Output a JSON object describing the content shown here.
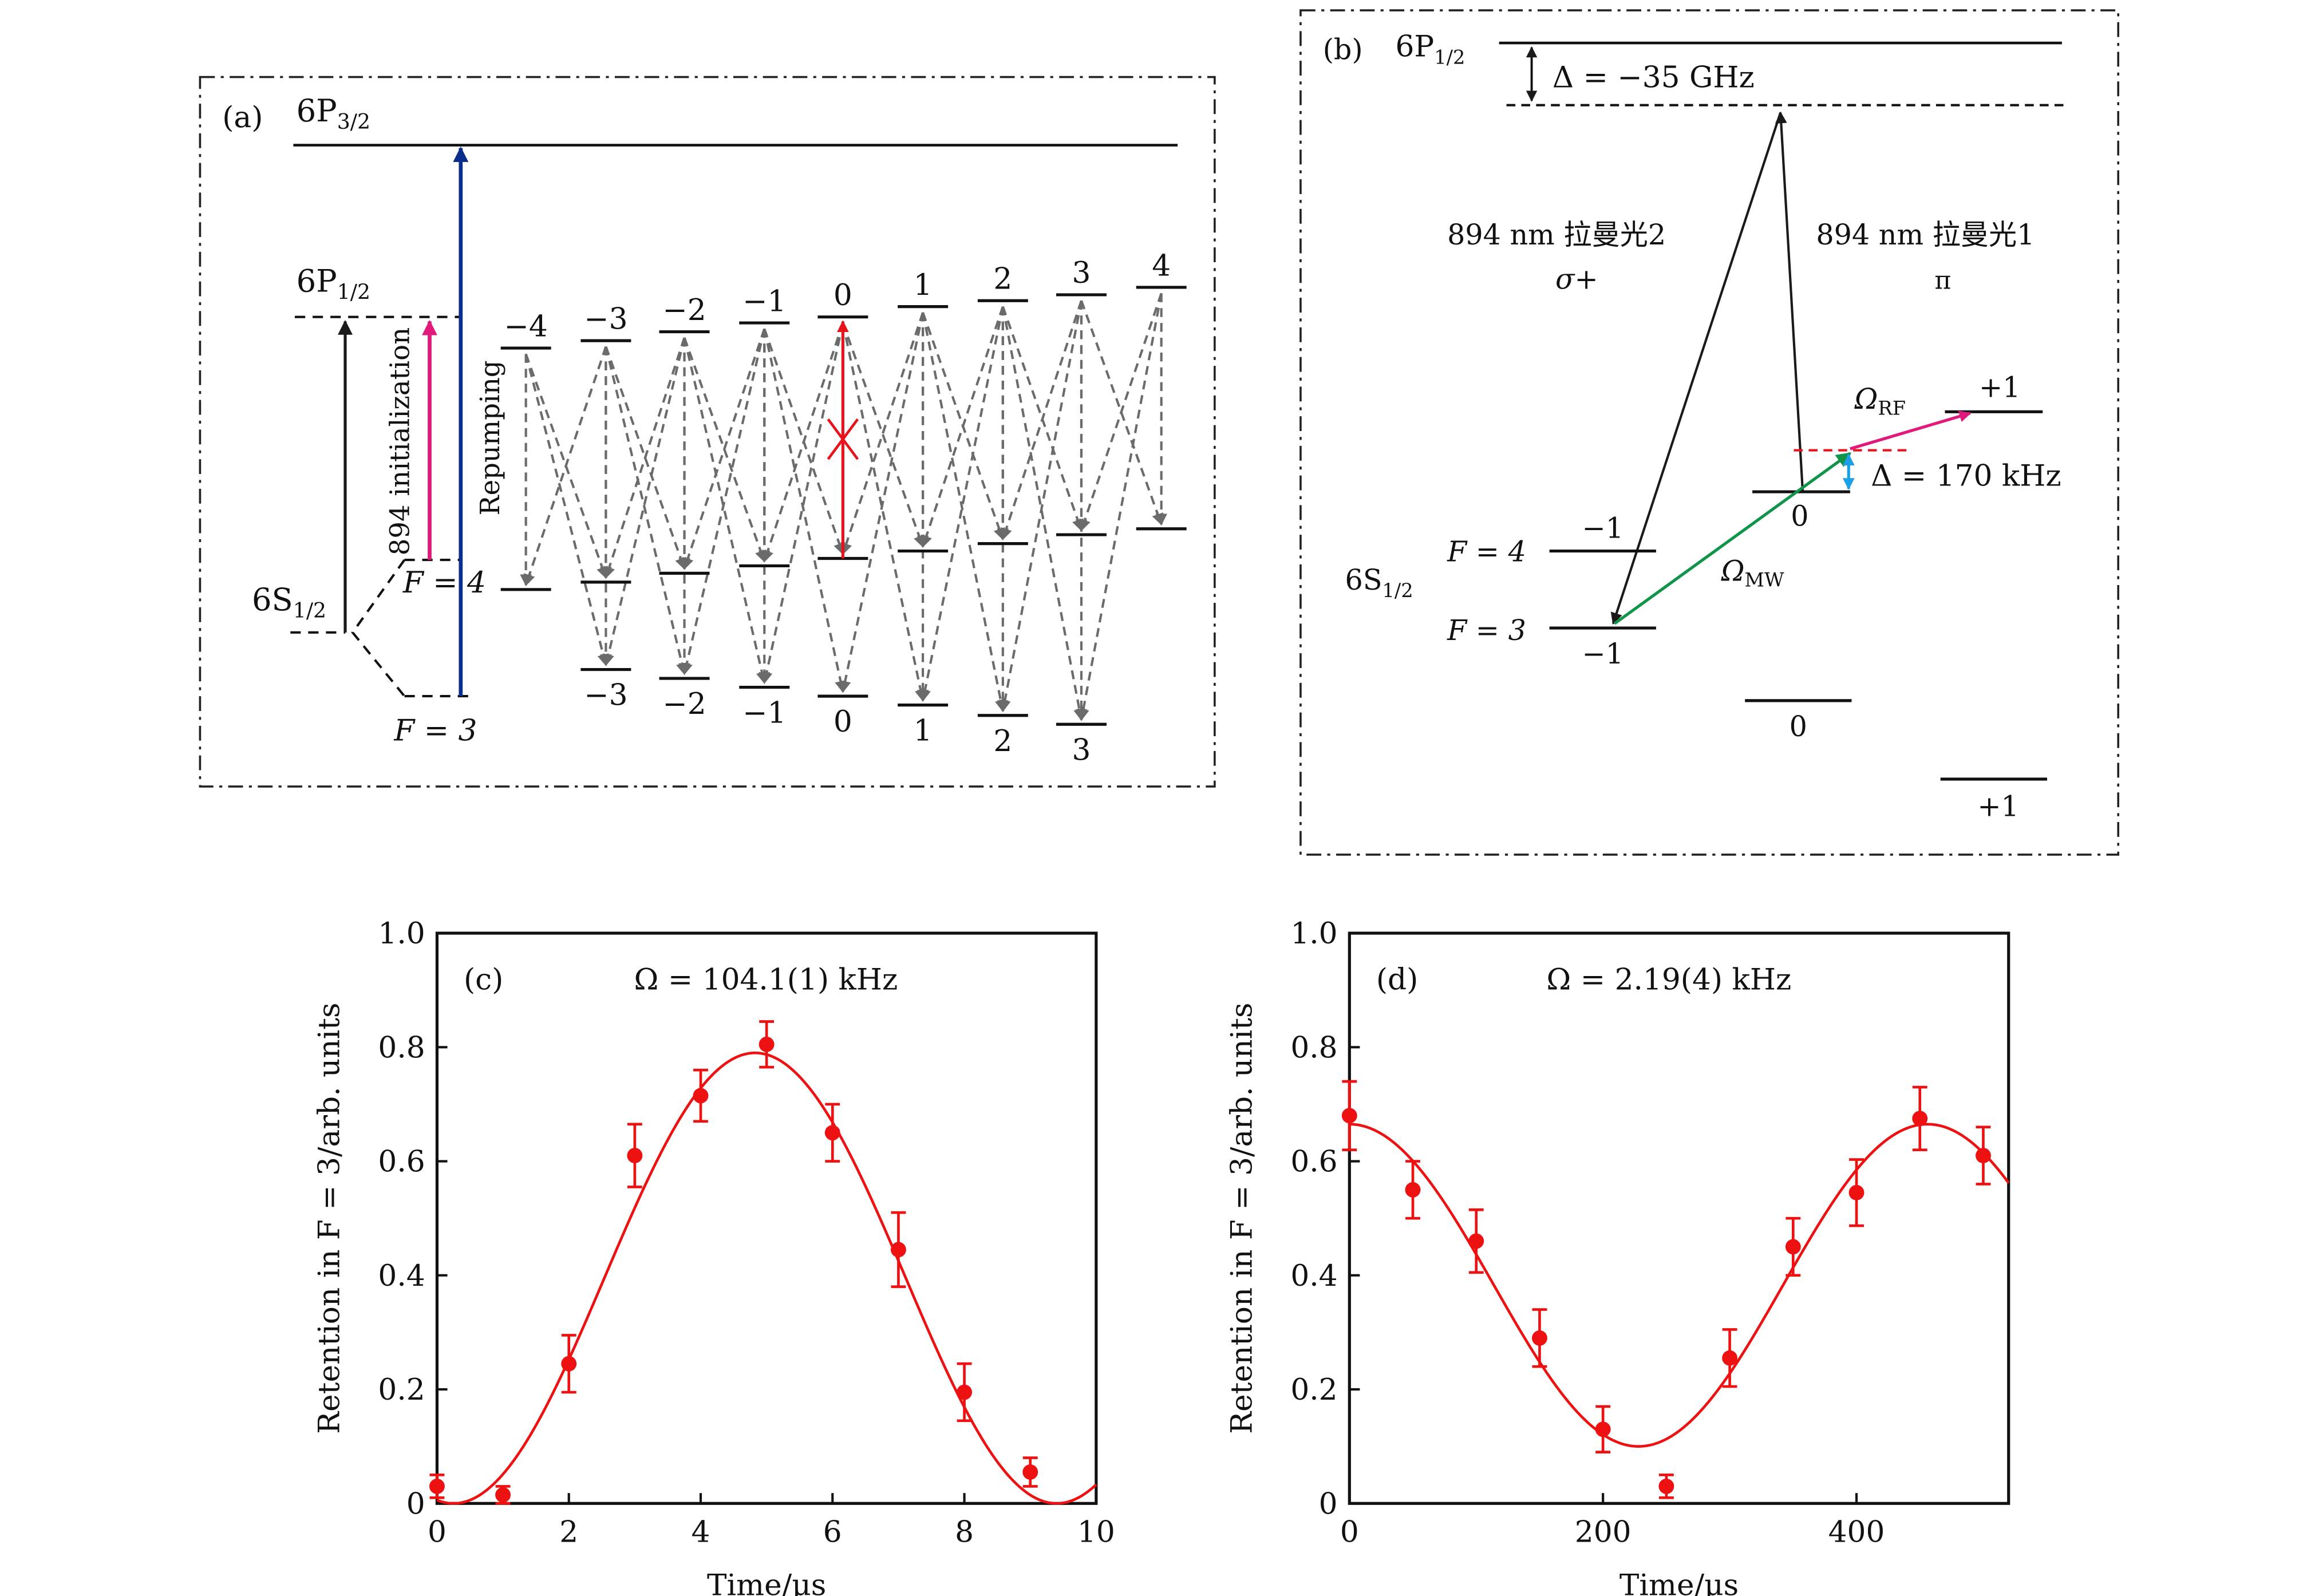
{
  "panel_a": {
    "label": "(a)",
    "p32": {
      "main": "6P",
      "sub": "3/2"
    },
    "p12": {
      "main": "6P",
      "sub": "1/2"
    },
    "s12": {
      "main": "6S",
      "sub": "1/2"
    },
    "f4": "F = 4",
    "f3": "F = 3",
    "init_label": "894 initialization",
    "repump_label": "Repumping",
    "upper_m": [
      "−4",
      "−3",
      "−2",
      "−1",
      "0",
      "1",
      "2",
      "3",
      "4"
    ],
    "f3_m": [
      "−3",
      "−2",
      "−1",
      "0",
      "1",
      "2",
      "3"
    ],
    "forbidden_mark": "×",
    "colors": {
      "init": "#e0197a",
      "repump": "#0b2d8c",
      "decay": "#6b6b6b",
      "forbidden": "#e8141c",
      "pump": "#1a1a1a"
    }
  },
  "panel_b": {
    "label": "(b)",
    "p12": {
      "main": "6P",
      "sub": "1/2"
    },
    "detuning": "Δ = −35 GHz",
    "raman2": "894 nm 拉曼光2",
    "raman2_pol": "σ+",
    "raman1": "894 nm 拉曼光1",
    "raman1_pol": "π",
    "s12": {
      "main": "6S",
      "sub": "1/2"
    },
    "f4": "F = 4",
    "f3": "F = 3",
    "f4_levels": [
      "−1",
      "0",
      "+1"
    ],
    "f3_levels": [
      "−1",
      "0",
      "+1"
    ],
    "rf": {
      "main": "Ω",
      "sub": "RF"
    },
    "mw": {
      "main": "Ω",
      "sub": "MW"
    },
    "two_photon_detuning": "Δ = 170 kHz",
    "colors": {
      "mw": "#10944a",
      "rf": "#e0197a",
      "detuning": "#1aa0e6",
      "virtual": "#e8141c"
    }
  },
  "chart_data": [
    {
      "type": "scatter",
      "panel": "(c)",
      "annotation": "Ω = 104.1(1) kHz",
      "xlabel": "Time/μs",
      "ylabel": "Retention in F = 3/arb. units",
      "xlim": [
        0,
        10
      ],
      "ylim": [
        0,
        1.0
      ],
      "xticks": [
        "0",
        "2",
        "4",
        "6",
        "8",
        "10"
      ],
      "yticks": [
        "0",
        "0.2",
        "0.4",
        "0.6",
        "0.8",
        "1.0"
      ],
      "x": [
        0,
        1,
        2,
        3,
        4,
        5,
        6,
        7,
        8,
        9
      ],
      "y": [
        0.03,
        0.015,
        0.245,
        0.61,
        0.715,
        0.805,
        0.65,
        0.445,
        0.195,
        0.055
      ],
      "yerr": [
        0.02,
        0.015,
        0.05,
        0.055,
        0.045,
        0.04,
        0.05,
        0.065,
        0.05,
        0.025
      ],
      "fit": {
        "model": "A·sin²(π(t−t0)/T)",
        "A": 0.79,
        "t0": 0.25,
        "T": 9.15
      },
      "color": "#ee1111"
    },
    {
      "type": "scatter",
      "panel": "(d)",
      "annotation": "Ω = 2.19(4) kHz",
      "xlabel": "Time/μs",
      "ylabel": "Retention in F = 3/arb. units",
      "xlim": [
        0,
        520
      ],
      "ylim": [
        0,
        1.0
      ],
      "xticks": [
        "0",
        "200",
        "400"
      ],
      "yticks": [
        "0",
        "0.2",
        "0.4",
        "0.6",
        "0.8",
        "1.0"
      ],
      "x": [
        0,
        50,
        100,
        150,
        200,
        250,
        300,
        350,
        400,
        450,
        500
      ],
      "y": [
        0.68,
        0.55,
        0.46,
        0.29,
        0.13,
        0.03,
        0.255,
        0.45,
        0.545,
        0.675,
        0.61
      ],
      "yerr": [
        0.06,
        0.05,
        0.055,
        0.05,
        0.04,
        0.02,
        0.05,
        0.05,
        0.058,
        0.055,
        0.05
      ],
      "fit": {
        "model": "C + B·cos(2πt/T)",
        "C": 0.3825,
        "B": 0.2825,
        "T": 456
      },
      "color": "#ee1111"
    }
  ]
}
